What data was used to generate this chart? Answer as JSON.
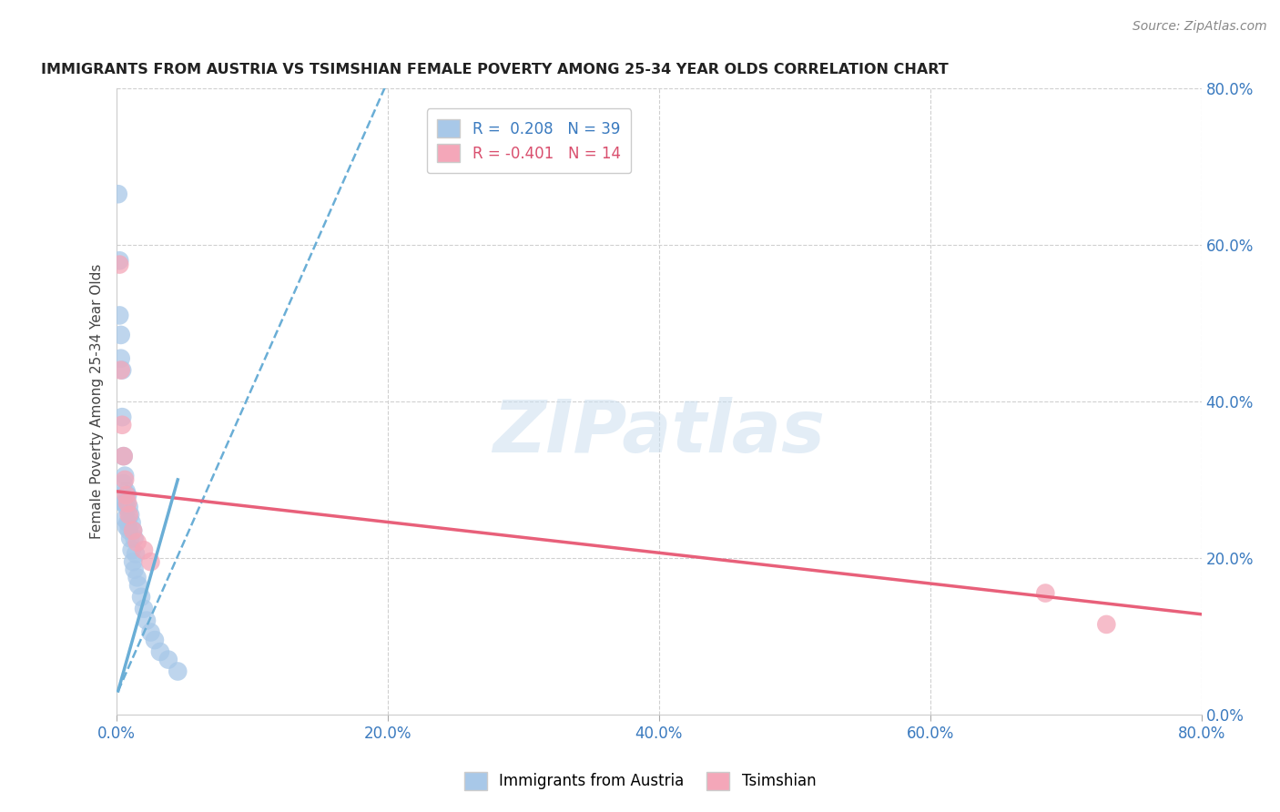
{
  "title": "IMMIGRANTS FROM AUSTRIA VS TSIMSHIAN FEMALE POVERTY AMONG 25-34 YEAR OLDS CORRELATION CHART",
  "source": "Source: ZipAtlas.com",
  "ylabel": "Female Poverty Among 25-34 Year Olds",
  "xlim": [
    0.0,
    0.8
  ],
  "ylim": [
    0.0,
    0.8
  ],
  "x_ticks": [
    0.0,
    0.2,
    0.4,
    0.6,
    0.8
  ],
  "y_ticks": [
    0.0,
    0.2,
    0.4,
    0.6,
    0.8
  ],
  "x_tick_labels": [
    "0.0%",
    "20.0%",
    "40.0%",
    "60.0%",
    "80.0%"
  ],
  "y_tick_labels": [
    "0.0%",
    "20.0%",
    "40.0%",
    "60.0%",
    "80.0%"
  ],
  "blue_R": 0.208,
  "blue_N": 39,
  "pink_R": -0.401,
  "pink_N": 14,
  "blue_color": "#a8c8e8",
  "blue_line_color": "#6aaed6",
  "pink_color": "#f4a7b9",
  "pink_line_color": "#e8607a",
  "grid_color": "#d0d0d0",
  "background_color": "#ffffff",
  "blue_scatter_x": [
    0.001,
    0.002,
    0.002,
    0.003,
    0.003,
    0.004,
    0.004,
    0.005,
    0.005,
    0.005,
    0.006,
    0.006,
    0.006,
    0.007,
    0.007,
    0.007,
    0.008,
    0.008,
    0.009,
    0.009,
    0.01,
    0.01,
    0.011,
    0.011,
    0.012,
    0.012,
    0.013,
    0.013,
    0.014,
    0.015,
    0.016,
    0.018,
    0.02,
    0.022,
    0.025,
    0.028,
    0.032,
    0.038,
    0.045
  ],
  "blue_scatter_y": [
    0.665,
    0.58,
    0.51,
    0.485,
    0.455,
    0.44,
    0.38,
    0.33,
    0.295,
    0.27,
    0.305,
    0.27,
    0.25,
    0.285,
    0.265,
    0.24,
    0.28,
    0.245,
    0.265,
    0.235,
    0.255,
    0.225,
    0.245,
    0.21,
    0.235,
    0.195,
    0.225,
    0.185,
    0.205,
    0.175,
    0.165,
    0.15,
    0.135,
    0.12,
    0.105,
    0.095,
    0.08,
    0.07,
    0.055
  ],
  "pink_scatter_x": [
    0.002,
    0.003,
    0.004,
    0.005,
    0.006,
    0.007,
    0.008,
    0.009,
    0.012,
    0.015,
    0.02,
    0.025,
    0.685,
    0.73
  ],
  "pink_scatter_y": [
    0.575,
    0.44,
    0.37,
    0.33,
    0.3,
    0.28,
    0.27,
    0.255,
    0.235,
    0.22,
    0.21,
    0.195,
    0.155,
    0.115
  ],
  "blue_trend_x": [
    0.001,
    0.2
  ],
  "blue_trend_y": [
    0.03,
    0.81
  ],
  "pink_trend_x": [
    0.0,
    0.8
  ],
  "pink_trend_y": [
    0.285,
    0.128
  ]
}
